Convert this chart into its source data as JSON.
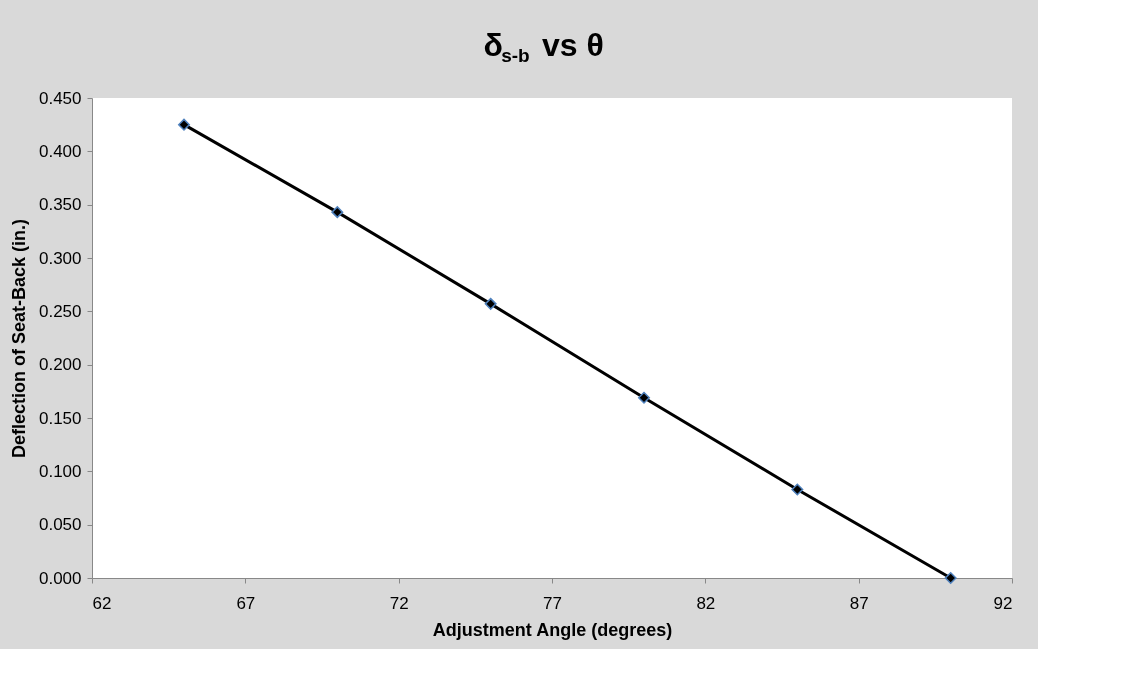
{
  "chart_data": {
    "type": "line",
    "title": "δ$_{s-b}$ vs θ",
    "xlabel": "Adjustment Angle (degrees)",
    "ylabel": "Deflection of Seat-Back (in.)",
    "x": [
      65,
      70,
      75,
      80,
      85,
      90
    ],
    "series": [
      {
        "color": "#000000",
        "values": [
          0.425,
          0.343,
          0.257,
          0.169,
          0.083,
          0.0
        ]
      }
    ],
    "xlim": [
      62,
      92
    ],
    "xticks": [
      62,
      67,
      72,
      77,
      82,
      87,
      92
    ],
    "ylim": [
      0,
      0.45
    ],
    "yticks": [
      {
        "value": 0,
        "label": "0.000"
      },
      {
        "value": 0.05,
        "label": "0.050"
      },
      {
        "value": 0.1,
        "label": "0.100"
      },
      {
        "value": 0.15,
        "label": "0.150"
      },
      {
        "value": 0.2,
        "label": "0.200"
      },
      {
        "value": 0.25,
        "label": "0.250"
      },
      {
        "value": 0.3,
        "label": "0.300"
      },
      {
        "value": 0.35,
        "label": "0.350"
      },
      {
        "value": 0.4,
        "label": "0.400"
      },
      {
        "value": 0.45,
        "label": "0.450"
      }
    ],
    "grid": false,
    "marker": "diamond",
    "line_style": "solid"
  }
}
